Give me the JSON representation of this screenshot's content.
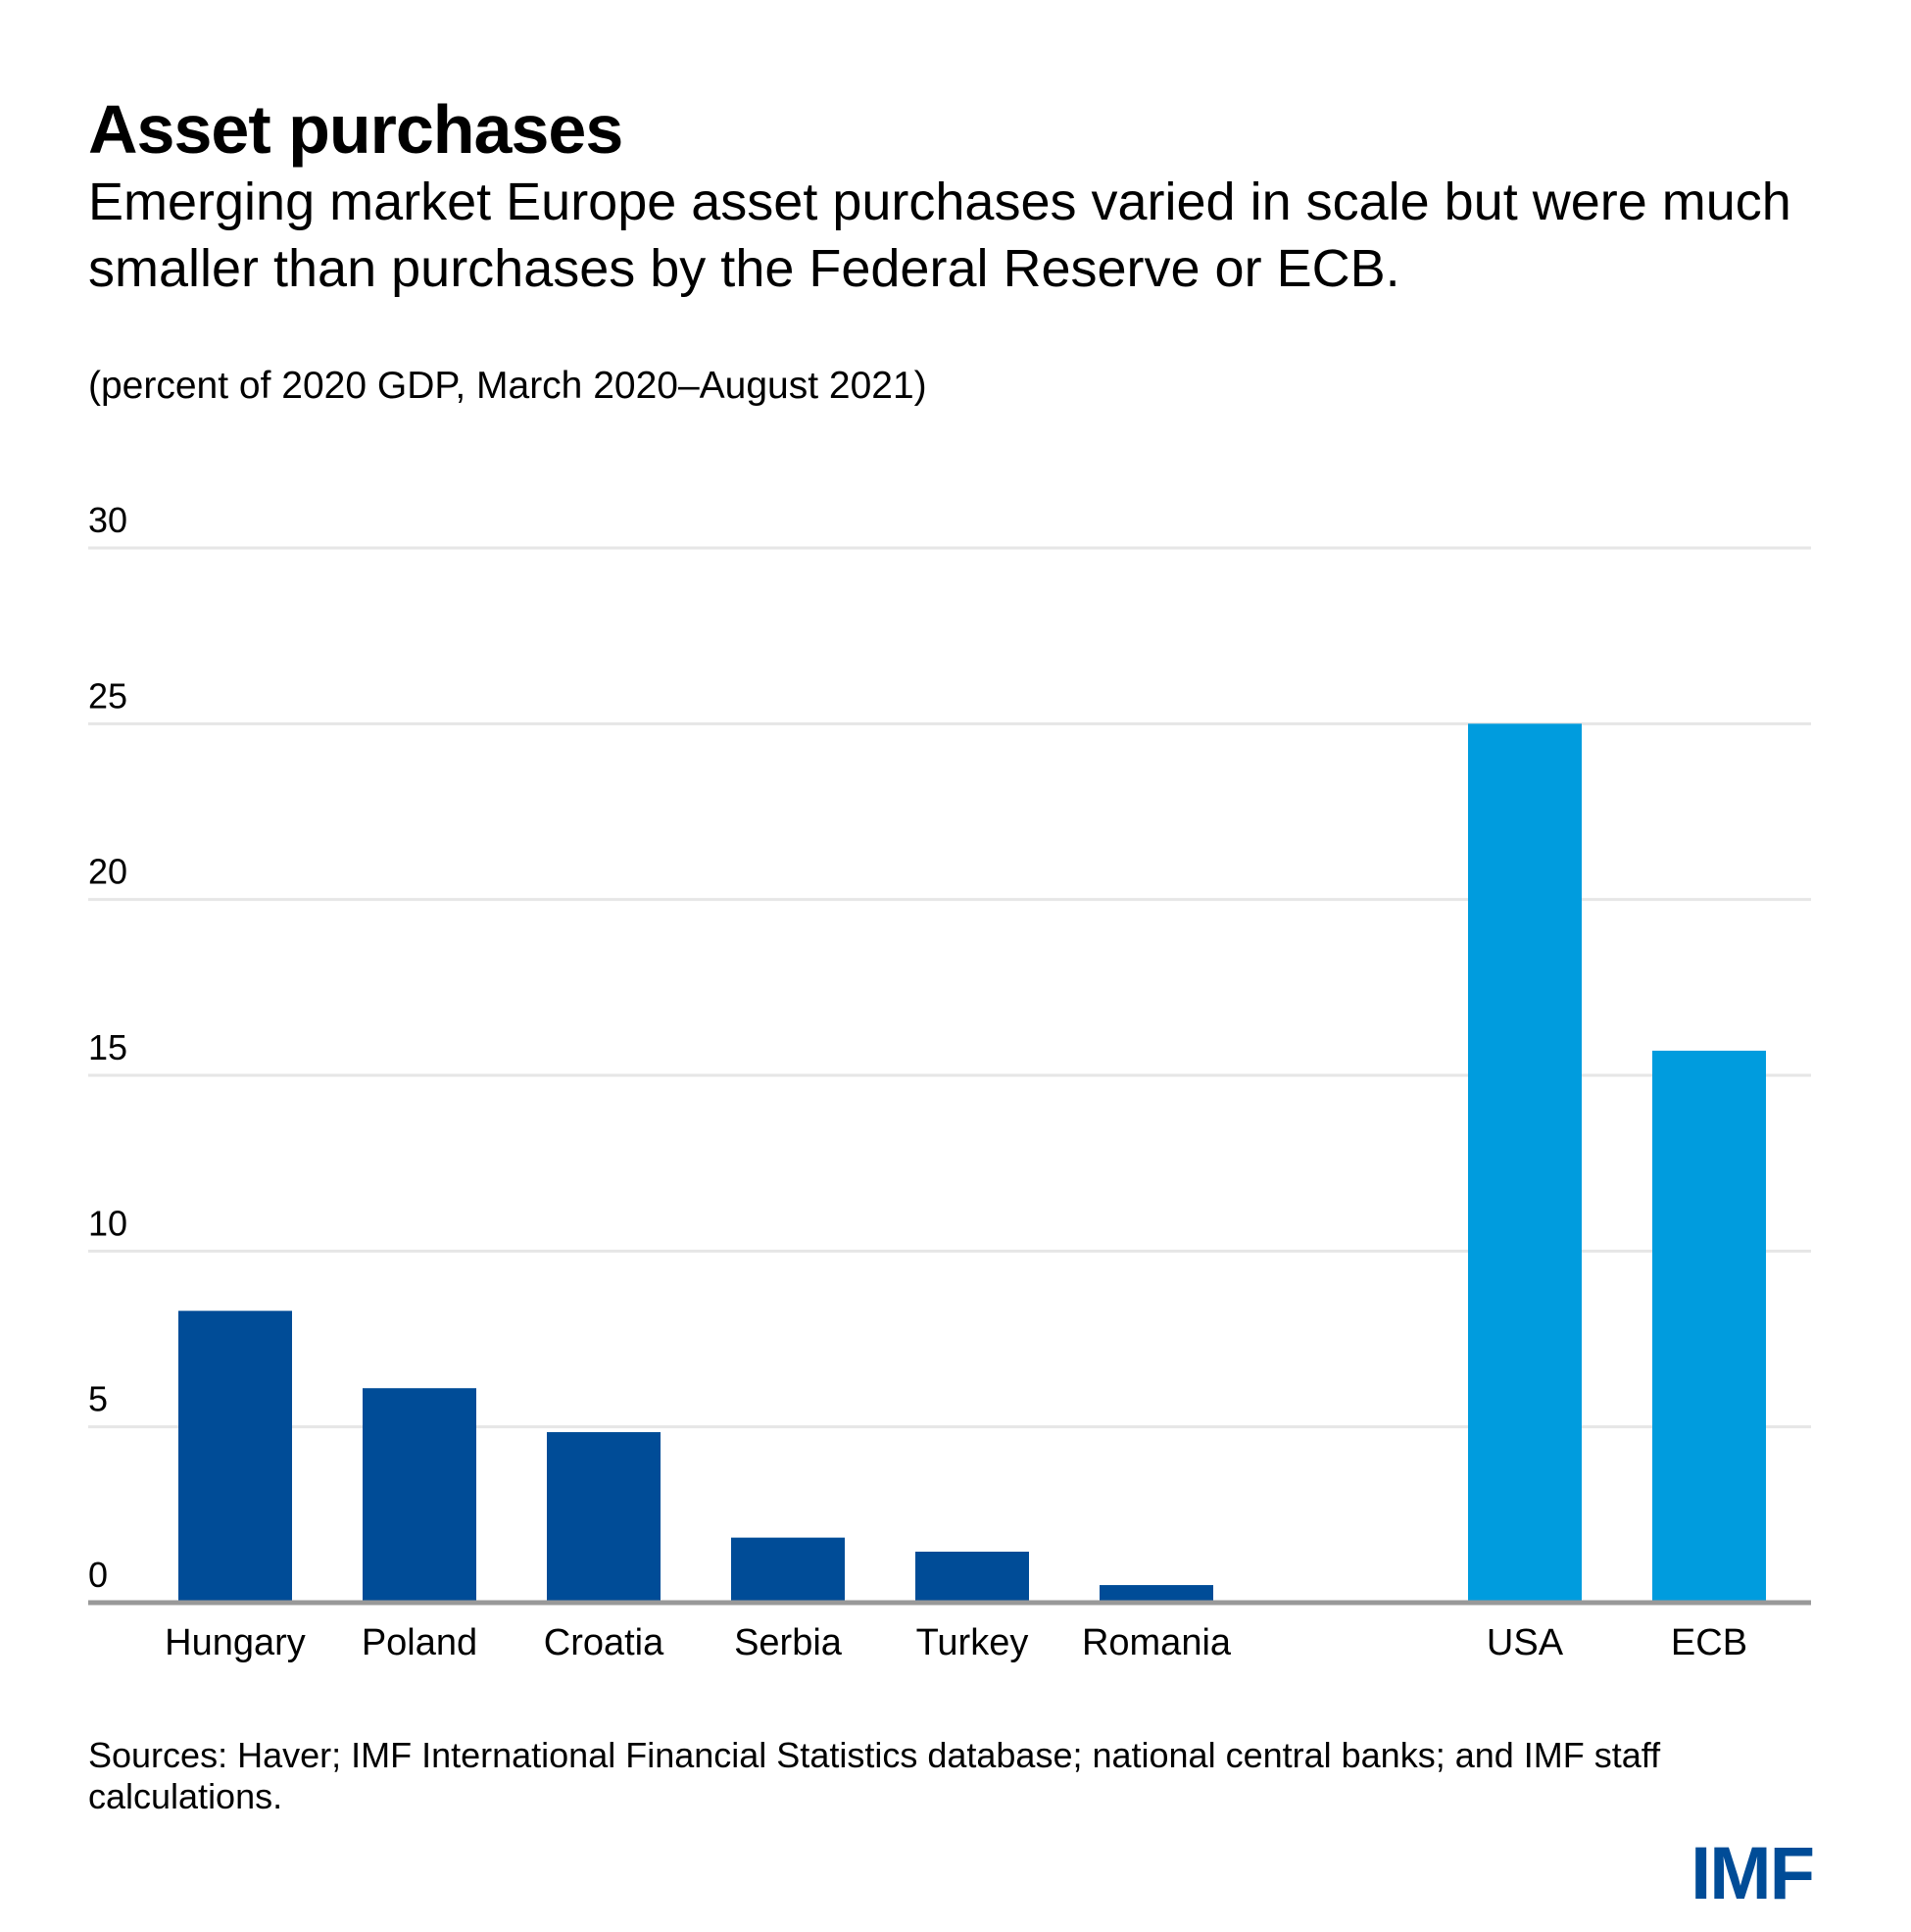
{
  "header": {
    "title": "Asset purchases",
    "subtitle": "Emerging market Europe asset purchases varied in scale but were much smaller than purchases by the Federal Reserve or ECB.",
    "units": "(percent of 2020 GDP, March 2020–August 2021)"
  },
  "footer": {
    "source": "Sources: Haver; IMF International Financial Statistics database; national central banks; and IMF staff calculations.",
    "logo": "IMF"
  },
  "colors": {
    "emerging": "#004c97",
    "advanced": "#009cde",
    "grid": "#e6e6e6",
    "axis": "#999999",
    "logo": "#004c97"
  },
  "chart_data": {
    "type": "bar",
    "title": "Asset purchases",
    "xlabel": "",
    "ylabel": "percent of 2020 GDP",
    "ylim": [
      0,
      30
    ],
    "yticks": [
      0,
      5,
      10,
      15,
      20,
      25,
      30
    ],
    "grid": true,
    "categories": [
      "Hungary",
      "Poland",
      "Croatia",
      "Serbia",
      "Turkey",
      "Romania",
      "USA",
      "ECB"
    ],
    "values": [
      8.3,
      6.1,
      4.85,
      1.85,
      1.45,
      0.5,
      25.0,
      15.7
    ],
    "groups": [
      "emerging",
      "emerging",
      "emerging",
      "emerging",
      "emerging",
      "emerging",
      "advanced",
      "advanced"
    ]
  }
}
